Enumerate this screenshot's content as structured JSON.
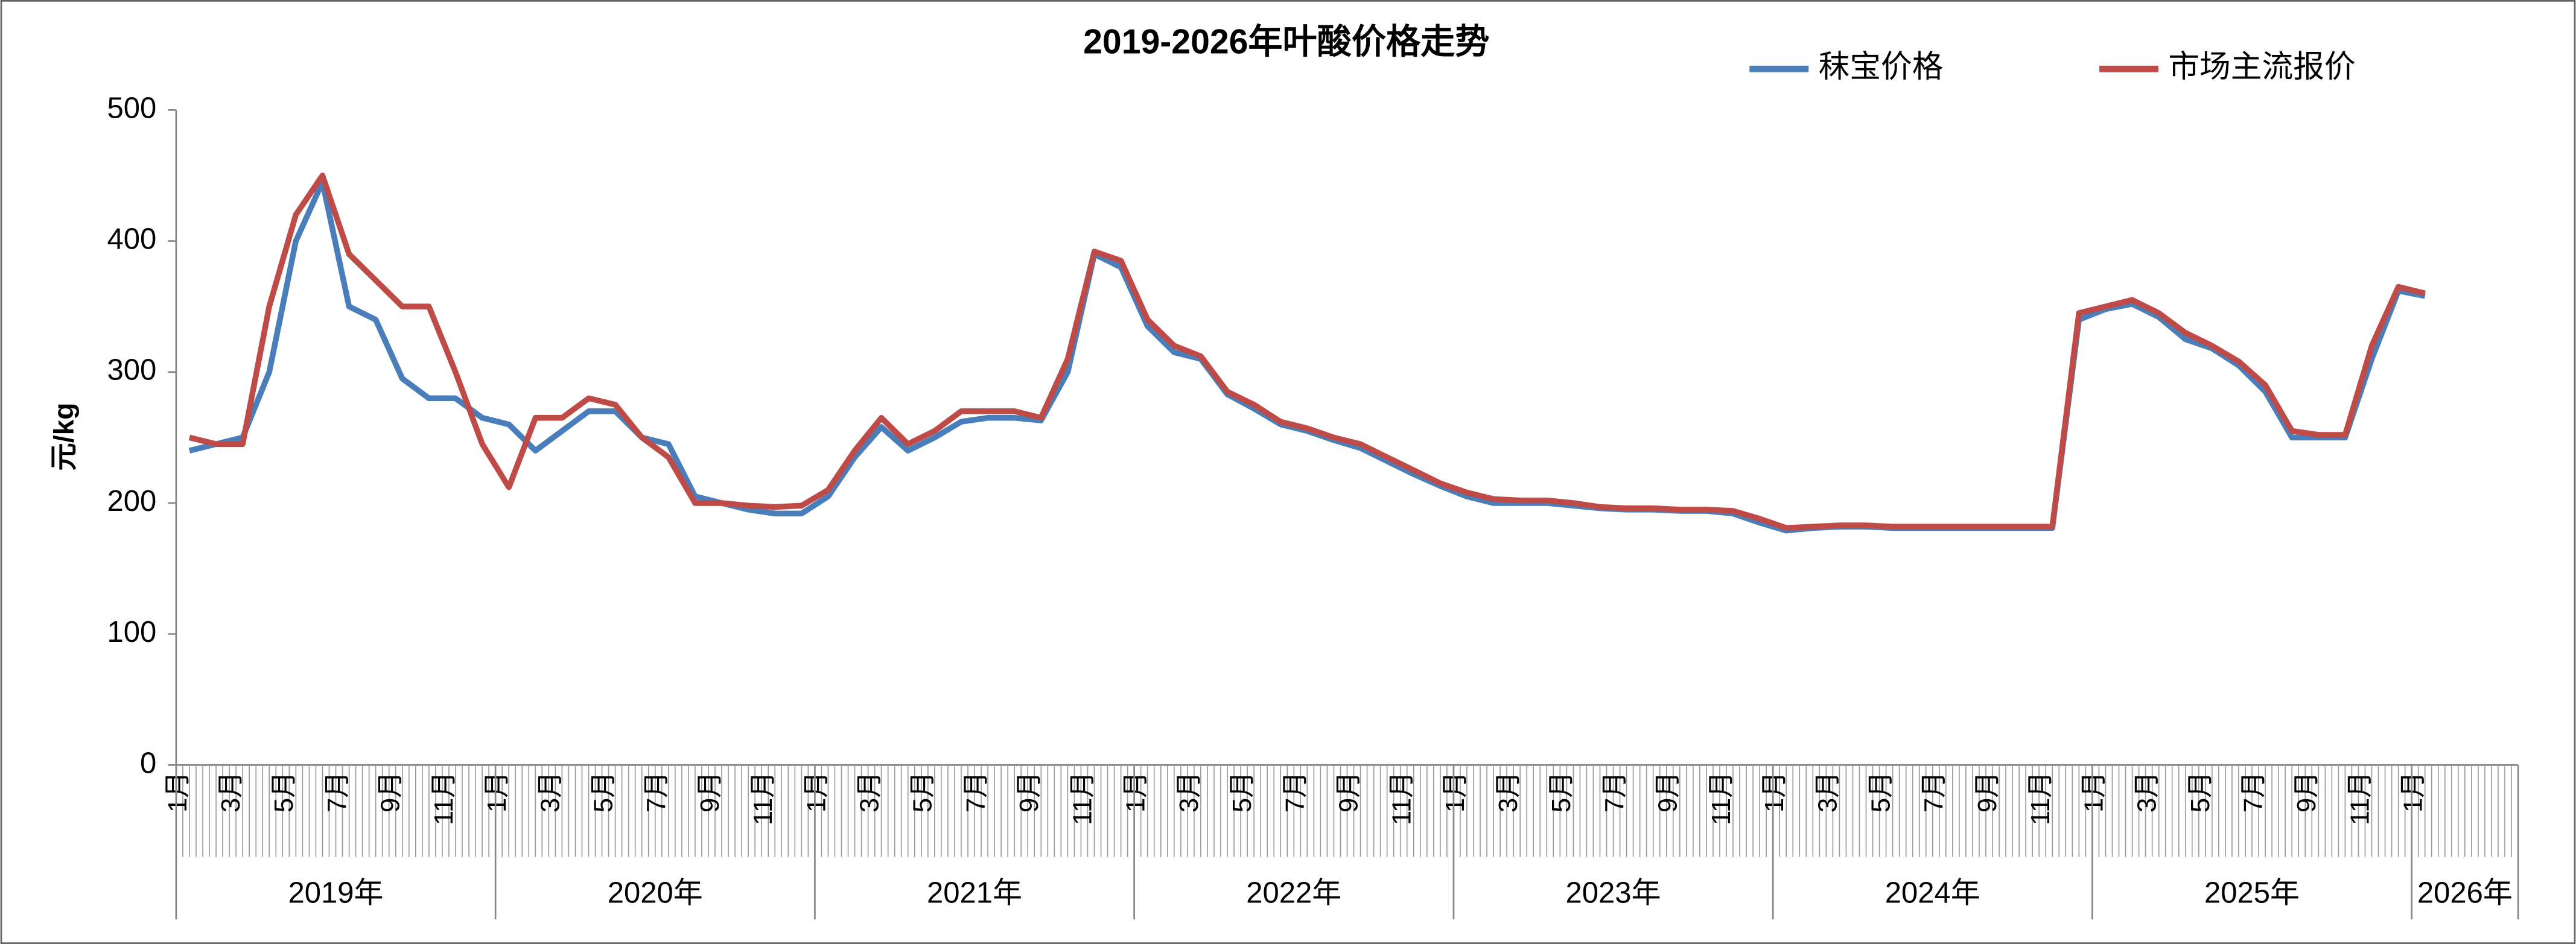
{
  "chart_data": {
    "type": "line",
    "title": "2019-2026年叶酸价格走势",
    "y_label": "元/kg",
    "ylim": [
      0,
      500
    ],
    "yticks": [
      0,
      100,
      200,
      300,
      400,
      500
    ],
    "grid": false,
    "legend": "top-right",
    "categories": [
      "1月",
      null,
      "3月",
      null,
      "5月",
      null,
      "7月",
      null,
      "9月",
      null,
      "11月",
      null,
      "1月",
      null,
      "3月",
      null,
      "5月",
      null,
      "7月",
      null,
      "9月",
      null,
      "11月",
      null,
      "1月",
      null,
      "3月",
      null,
      "5月",
      null,
      "7月",
      null,
      "9月",
      null,
      "11月",
      null,
      "1月",
      null,
      "3月",
      null,
      "5月",
      null,
      "7月",
      null,
      "9月",
      null,
      "11月",
      null,
      "1月",
      null,
      "3月",
      null,
      "5月",
      null,
      "7月",
      null,
      "9月",
      null,
      "11月",
      null,
      "1月",
      null,
      "3月",
      null,
      "5月",
      null,
      "7月",
      null,
      "9月",
      null,
      "11月",
      null,
      "1月",
      null,
      "3月",
      null,
      "5月",
      null,
      "7月",
      null,
      "9月",
      null,
      "11月",
      null,
      "1月",
      null,
      null,
      null
    ],
    "years": [
      "2019年",
      "2020年",
      "2021年",
      "2022年",
      "2023年",
      "2024年",
      "2025年",
      "2026年"
    ],
    "series": [
      {
        "name": "秣宝价格",
        "color": "#4a7ebb",
        "values": [
          240,
          245,
          250,
          300,
          400,
          445,
          350,
          340,
          295,
          280,
          280,
          265,
          260,
          240,
          255,
          270,
          270,
          250,
          245,
          205,
          200,
          195,
          192,
          192,
          205,
          235,
          258,
          240,
          250,
          262,
          265,
          265,
          263,
          300,
          390,
          380,
          335,
          315,
          310,
          283,
          272,
          260,
          255,
          248,
          242,
          232,
          222,
          213,
          205,
          200,
          200,
          200,
          198,
          196,
          195,
          195,
          194,
          194,
          192,
          185,
          179,
          181,
          182,
          182,
          181,
          181,
          181,
          181,
          181,
          181,
          181,
          340,
          348,
          352,
          342,
          325,
          318,
          305,
          285,
          250,
          250,
          250,
          310,
          362,
          358,
          null,
          null,
          null
        ]
      },
      {
        "name": "市场主流报价",
        "color": "#be4b48",
        "values": [
          250,
          245,
          245,
          350,
          420,
          450,
          390,
          370,
          350,
          350,
          300,
          245,
          212,
          265,
          265,
          280,
          275,
          250,
          235,
          200,
          200,
          198,
          197,
          198,
          210,
          240,
          265,
          245,
          255,
          270,
          270,
          270,
          265,
          310,
          392,
          385,
          340,
          320,
          312,
          285,
          275,
          262,
          257,
          250,
          245,
          235,
          225,
          215,
          208,
          203,
          202,
          202,
          200,
          197,
          196,
          196,
          195,
          195,
          194,
          188,
          181,
          182,
          183,
          183,
          182,
          182,
          182,
          182,
          182,
          182,
          182,
          345,
          350,
          355,
          345,
          330,
          320,
          308,
          290,
          255,
          252,
          252,
          320,
          365,
          360,
          null,
          null,
          null
        ]
      }
    ]
  }
}
